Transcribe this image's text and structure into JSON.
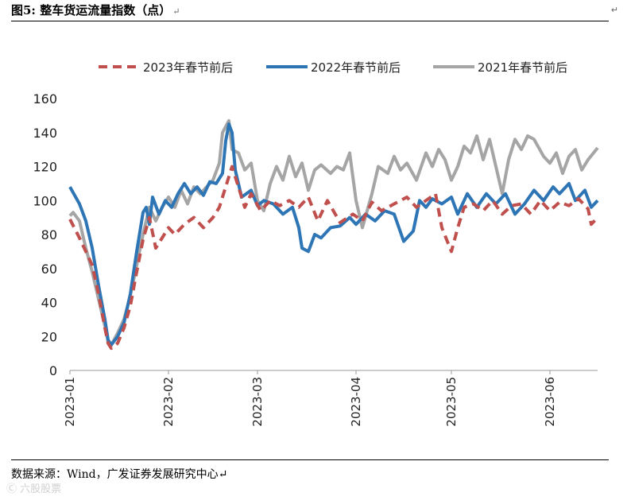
{
  "header": {
    "title": "图5: 整车货运流量指数（点）",
    "return_mark": "↵"
  },
  "footer": {
    "source": "数据来源：Wind，广发证券发展研究中心↵",
    "watermark": "Ⓒ 六股股票"
  },
  "chart_data": {
    "type": "line",
    "title": "",
    "xlabel": "",
    "ylabel": "",
    "ylim": [
      0,
      160
    ],
    "yticks": [
      0,
      20,
      40,
      60,
      80,
      100,
      120,
      140,
      160
    ],
    "x_range": [
      "2023-01-01",
      "2023-06-16"
    ],
    "xticks": [
      "2023-01",
      "2023-02",
      "2023-03",
      "2023-04",
      "2023-05",
      "2023-06"
    ],
    "grid": false,
    "legend_position": "top",
    "series": [
      {
        "name": "2023年春节前后",
        "color": "#C0504D",
        "style": "dashed",
        "points": [
          [
            "2023-01-01",
            89
          ],
          [
            "2023-01-04",
            78
          ],
          [
            "2023-01-06",
            70
          ],
          [
            "2023-01-08",
            62
          ],
          [
            "2023-01-10",
            45
          ],
          [
            "2023-01-12",
            25
          ],
          [
            "2023-01-13",
            16
          ],
          [
            "2023-01-14",
            13
          ],
          [
            "2023-01-16",
            16
          ],
          [
            "2023-01-18",
            25
          ],
          [
            "2023-01-20",
            38
          ],
          [
            "2023-01-22",
            58
          ],
          [
            "2023-01-24",
            77
          ],
          [
            "2023-01-26",
            90
          ],
          [
            "2023-01-28",
            72
          ],
          [
            "2023-01-30",
            78
          ],
          [
            "2023-02-01",
            84
          ],
          [
            "2023-02-03",
            80
          ],
          [
            "2023-02-06",
            86
          ],
          [
            "2023-02-09",
            90
          ],
          [
            "2023-02-12",
            84
          ],
          [
            "2023-02-15",
            90
          ],
          [
            "2023-02-17",
            96
          ],
          [
            "2023-02-19",
            108
          ],
          [
            "2023-02-20",
            114
          ],
          [
            "2023-02-21",
            120
          ],
          [
            "2023-02-23",
            108
          ],
          [
            "2023-02-25",
            96
          ],
          [
            "2023-02-27",
            104
          ],
          [
            "2023-03-02",
            94
          ],
          [
            "2023-03-05",
            100
          ],
          [
            "2023-03-08",
            97
          ],
          [
            "2023-03-11",
            100
          ],
          [
            "2023-03-14",
            96
          ],
          [
            "2023-03-17",
            102
          ],
          [
            "2023-03-20",
            88
          ],
          [
            "2023-03-23",
            100
          ],
          [
            "2023-03-27",
            87
          ],
          [
            "2023-03-31",
            92
          ],
          [
            "2023-04-03",
            88
          ],
          [
            "2023-04-06",
            99
          ],
          [
            "2023-04-09",
            94
          ],
          [
            "2023-04-13",
            98
          ],
          [
            "2023-04-17",
            102
          ],
          [
            "2023-04-20",
            96
          ],
          [
            "2023-04-23",
            100
          ],
          [
            "2023-04-26",
            104
          ],
          [
            "2023-04-28",
            84
          ],
          [
            "2023-05-01",
            70
          ],
          [
            "2023-05-03",
            84
          ],
          [
            "2023-05-05",
            96
          ],
          [
            "2023-05-08",
            98
          ],
          [
            "2023-05-11",
            94
          ],
          [
            "2023-05-14",
            100
          ],
          [
            "2023-05-17",
            92
          ],
          [
            "2023-05-20",
            97
          ],
          [
            "2023-05-23",
            98
          ],
          [
            "2023-05-26",
            92
          ],
          [
            "2023-05-29",
            100
          ],
          [
            "2023-06-01",
            94
          ],
          [
            "2023-06-04",
            99
          ],
          [
            "2023-06-07",
            97
          ],
          [
            "2023-06-10",
            101
          ],
          [
            "2023-06-13",
            95
          ],
          [
            "2023-06-14",
            86
          ],
          [
            "2023-06-16",
            90
          ]
        ]
      },
      {
        "name": "2022年春节前后",
        "color": "#2E75B6",
        "style": "solid",
        "points": [
          [
            "2023-01-01",
            108
          ],
          [
            "2023-01-04",
            98
          ],
          [
            "2023-01-06",
            88
          ],
          [
            "2023-01-08",
            72
          ],
          [
            "2023-01-10",
            50
          ],
          [
            "2023-01-12",
            30
          ],
          [
            "2023-01-13",
            18
          ],
          [
            "2023-01-14",
            15
          ],
          [
            "2023-01-16",
            20
          ],
          [
            "2023-01-18",
            28
          ],
          [
            "2023-01-20",
            45
          ],
          [
            "2023-01-22",
            70
          ],
          [
            "2023-01-24",
            93
          ],
          [
            "2023-01-25",
            96
          ],
          [
            "2023-01-26",
            86
          ],
          [
            "2023-01-27",
            102
          ],
          [
            "2023-01-29",
            92
          ],
          [
            "2023-01-31",
            100
          ],
          [
            "2023-02-02",
            96
          ],
          [
            "2023-02-04",
            104
          ],
          [
            "2023-02-06",
            110
          ],
          [
            "2023-02-08",
            104
          ],
          [
            "2023-02-10",
            108
          ],
          [
            "2023-02-12",
            103
          ],
          [
            "2023-02-14",
            111
          ],
          [
            "2023-02-16",
            110
          ],
          [
            "2023-02-18",
            116
          ],
          [
            "2023-02-19",
            135
          ],
          [
            "2023-02-20",
            145
          ],
          [
            "2023-02-21",
            140
          ],
          [
            "2023-02-22",
            118
          ],
          [
            "2023-02-24",
            102
          ],
          [
            "2023-02-27",
            106
          ],
          [
            "2023-03-01",
            97
          ],
          [
            "2023-03-03",
            100
          ],
          [
            "2023-03-06",
            98
          ],
          [
            "2023-03-09",
            92
          ],
          [
            "2023-03-12",
            96
          ],
          [
            "2023-03-14",
            84
          ],
          [
            "2023-03-15",
            72
          ],
          [
            "2023-03-17",
            70
          ],
          [
            "2023-03-19",
            80
          ],
          [
            "2023-03-21",
            78
          ],
          [
            "2023-03-24",
            84
          ],
          [
            "2023-03-27",
            85
          ],
          [
            "2023-03-30",
            90
          ],
          [
            "2023-04-01",
            86
          ],
          [
            "2023-04-04",
            92
          ],
          [
            "2023-04-07",
            88
          ],
          [
            "2023-04-10",
            94
          ],
          [
            "2023-04-13",
            92
          ],
          [
            "2023-04-16",
            76
          ],
          [
            "2023-04-19",
            82
          ],
          [
            "2023-04-21",
            100
          ],
          [
            "2023-04-23",
            96
          ],
          [
            "2023-04-25",
            101
          ],
          [
            "2023-04-28",
            98
          ],
          [
            "2023-05-01",
            102
          ],
          [
            "2023-05-03",
            92
          ],
          [
            "2023-05-06",
            104
          ],
          [
            "2023-05-09",
            96
          ],
          [
            "2023-05-12",
            104
          ],
          [
            "2023-05-15",
            98
          ],
          [
            "2023-05-18",
            104
          ],
          [
            "2023-05-21",
            92
          ],
          [
            "2023-05-24",
            98
          ],
          [
            "2023-05-27",
            106
          ],
          [
            "2023-05-30",
            100
          ],
          [
            "2023-06-02",
            108
          ],
          [
            "2023-06-04",
            104
          ],
          [
            "2023-06-07",
            110
          ],
          [
            "2023-06-09",
            100
          ],
          [
            "2023-06-12",
            106
          ],
          [
            "2023-06-14",
            96
          ],
          [
            "2023-06-16",
            100
          ]
        ]
      },
      {
        "name": "2021年春节前后",
        "color": "#A5A5A5",
        "style": "solid",
        "points": [
          [
            "2023-01-01",
            91
          ],
          [
            "2023-01-02",
            93
          ],
          [
            "2023-01-04",
            88
          ],
          [
            "2023-01-06",
            72
          ],
          [
            "2023-01-08",
            58
          ],
          [
            "2023-01-10",
            42
          ],
          [
            "2023-01-12",
            26
          ],
          [
            "2023-01-13",
            17
          ],
          [
            "2023-01-14",
            15
          ],
          [
            "2023-01-16",
            22
          ],
          [
            "2023-01-18",
            30
          ],
          [
            "2023-01-20",
            44
          ],
          [
            "2023-01-22",
            62
          ],
          [
            "2023-01-24",
            80
          ],
          [
            "2023-01-26",
            96
          ],
          [
            "2023-01-28",
            88
          ],
          [
            "2023-01-30",
            96
          ],
          [
            "2023-02-01",
            102
          ],
          [
            "2023-02-03",
            96
          ],
          [
            "2023-02-05",
            106
          ],
          [
            "2023-02-07",
            98
          ],
          [
            "2023-02-09",
            108
          ],
          [
            "2023-02-11",
            104
          ],
          [
            "2023-02-13",
            108
          ],
          [
            "2023-02-15",
            112
          ],
          [
            "2023-02-17",
            122
          ],
          [
            "2023-02-18",
            140
          ],
          [
            "2023-02-20",
            147
          ],
          [
            "2023-02-21",
            130
          ],
          [
            "2023-02-23",
            128
          ],
          [
            "2023-02-25",
            118
          ],
          [
            "2023-02-27",
            122
          ],
          [
            "2023-03-01",
            100
          ],
          [
            "2023-03-03",
            94
          ],
          [
            "2023-03-05",
            110
          ],
          [
            "2023-03-07",
            120
          ],
          [
            "2023-03-09",
            112
          ],
          [
            "2023-03-11",
            126
          ],
          [
            "2023-03-13",
            114
          ],
          [
            "2023-03-15",
            122
          ],
          [
            "2023-03-17",
            106
          ],
          [
            "2023-03-19",
            118
          ],
          [
            "2023-03-21",
            121
          ],
          [
            "2023-03-24",
            116
          ],
          [
            "2023-03-26",
            120
          ],
          [
            "2023-03-28",
            118
          ],
          [
            "2023-03-30",
            128
          ],
          [
            "2023-04-01",
            100
          ],
          [
            "2023-04-03",
            84
          ],
          [
            "2023-04-06",
            104
          ],
          [
            "2023-04-08",
            120
          ],
          [
            "2023-04-11",
            116
          ],
          [
            "2023-04-13",
            126
          ],
          [
            "2023-04-15",
            118
          ],
          [
            "2023-04-17",
            122
          ],
          [
            "2023-04-20",
            112
          ],
          [
            "2023-04-23",
            128
          ],
          [
            "2023-04-25",
            120
          ],
          [
            "2023-04-27",
            130
          ],
          [
            "2023-04-29",
            124
          ],
          [
            "2023-05-01",
            112
          ],
          [
            "2023-05-03",
            120
          ],
          [
            "2023-05-05",
            132
          ],
          [
            "2023-05-07",
            128
          ],
          [
            "2023-05-09",
            138
          ],
          [
            "2023-05-11",
            124
          ],
          [
            "2023-05-13",
            136
          ],
          [
            "2023-05-15",
            120
          ],
          [
            "2023-05-17",
            104
          ],
          [
            "2023-05-19",
            124
          ],
          [
            "2023-05-21",
            136
          ],
          [
            "2023-05-23",
            130
          ],
          [
            "2023-05-25",
            138
          ],
          [
            "2023-05-27",
            136
          ],
          [
            "2023-05-30",
            126
          ],
          [
            "2023-06-01",
            122
          ],
          [
            "2023-06-03",
            128
          ],
          [
            "2023-06-05",
            116
          ],
          [
            "2023-06-07",
            126
          ],
          [
            "2023-06-09",
            130
          ],
          [
            "2023-06-11",
            118
          ],
          [
            "2023-06-13",
            124
          ],
          [
            "2023-06-16",
            131
          ]
        ]
      }
    ]
  }
}
